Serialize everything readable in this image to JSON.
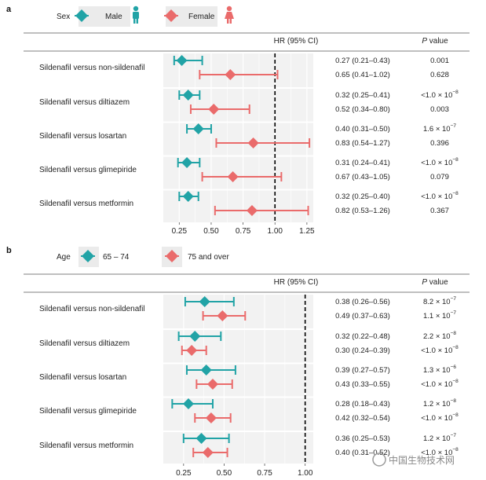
{
  "colors": {
    "male": "#21a3a6",
    "female": "#ea6b6b",
    "band": "#f2f2f2",
    "grid": "#ffffff"
  },
  "chart_data": [
    {
      "panel": "a",
      "type": "forest",
      "legend": {
        "title": "Sex",
        "items": [
          {
            "name": "Male",
            "color": "#21a3a6",
            "shape": "diamond",
            "icon": "male-person-icon"
          },
          {
            "name": "Female",
            "color": "#ea6b6b",
            "shape": "diamond",
            "icon": "female-person-icon"
          }
        ]
      },
      "header": {
        "hr": "HR (95% CI)",
        "p_italic": "P",
        "p_rest": " value"
      },
      "xaxis": {
        "min": 0.125,
        "max": 1.3,
        "ticks": [
          0.25,
          0.5,
          0.75,
          1.0,
          1.25
        ],
        "tick_labels": [
          "0.25",
          "0.50",
          "0.75",
          "1.00",
          "1.25"
        ],
        "ref_line": 1.0
      },
      "rows": [
        {
          "label": "Sildenafil versus non-sildenafil",
          "estimates": [
            {
              "group": "Male",
              "hr": 0.27,
              "lo": 0.21,
              "hi": 0.43,
              "hr_text": "0.27 (0.21–0.43)",
              "p_text": "0.001"
            },
            {
              "group": "Female",
              "hr": 0.65,
              "lo": 0.41,
              "hi": 1.02,
              "hr_text": "0.65 (0.41–1.02)",
              "p_text": "0.628"
            }
          ]
        },
        {
          "label": "Sildenafil versus diltiazem",
          "estimates": [
            {
              "group": "Male",
              "hr": 0.32,
              "lo": 0.25,
              "hi": 0.41,
              "hr_text": "0.32 (0.25–0.41)",
              "p_text": "<1.0 × 10",
              "p_exp": "−8"
            },
            {
              "group": "Female",
              "hr": 0.52,
              "lo": 0.34,
              "hi": 0.8,
              "hr_text": "0.52 (0.34–0.80)",
              "p_text": "0.003"
            }
          ]
        },
        {
          "label": "Sildenafil versus losartan",
          "estimates": [
            {
              "group": "Male",
              "hr": 0.4,
              "lo": 0.31,
              "hi": 0.5,
              "hr_text": "0.40 (0.31–0.50)",
              "p_text": "1.6 × 10",
              "p_exp": "−7"
            },
            {
              "group": "Female",
              "hr": 0.83,
              "lo": 0.54,
              "hi": 1.27,
              "hr_text": "0.83 (0.54–1.27)",
              "p_text": "0.396"
            }
          ]
        },
        {
          "label": "Sildenafil versus glimepiride",
          "estimates": [
            {
              "group": "Male",
              "hr": 0.31,
              "lo": 0.24,
              "hi": 0.41,
              "hr_text": "0.31 (0.24–0.41)",
              "p_text": "<1.0 × 10",
              "p_exp": "−8"
            },
            {
              "group": "Female",
              "hr": 0.67,
              "lo": 0.43,
              "hi": 1.05,
              "hr_text": "0.67 (0.43–1.05)",
              "p_text": "0.079"
            }
          ]
        },
        {
          "label": "Sildenafil versus metformin",
          "estimates": [
            {
              "group": "Male",
              "hr": 0.32,
              "lo": 0.25,
              "hi": 0.4,
              "hr_text": "0.32 (0.25–0.40)",
              "p_text": "<1.0 × 10",
              "p_exp": "−8"
            },
            {
              "group": "Female",
              "hr": 0.82,
              "lo": 0.53,
              "hi": 1.26,
              "hr_text": "0.82 (0.53–1.26)",
              "p_text": "0.367"
            }
          ]
        }
      ]
    },
    {
      "panel": "b",
      "type": "forest",
      "legend": {
        "title": "Age",
        "items": [
          {
            "name": "65 – 74",
            "color": "#21a3a6",
            "shape": "diamond"
          },
          {
            "name": "75 and over",
            "color": "#ea6b6b",
            "shape": "diamond"
          }
        ]
      },
      "header": {
        "hr": "HR (95% CI)",
        "p_italic": "P",
        "p_rest": " value"
      },
      "xaxis": {
        "min": 0.125,
        "max": 1.05,
        "ticks": [
          0.25,
          0.5,
          0.75,
          1.0
        ],
        "tick_labels": [
          "0.25",
          "0.50",
          "0.75",
          "1.00"
        ],
        "ref_line": 1.0
      },
      "rows": [
        {
          "label": "Sildenafil versus non-sildenafil",
          "estimates": [
            {
              "group": "65 – 74",
              "hr": 0.38,
              "lo": 0.26,
              "hi": 0.56,
              "hr_text": "0.38 (0.26–0.56)",
              "p_text": "8.2 × 10",
              "p_exp": "−7"
            },
            {
              "group": "75 and over",
              "hr": 0.49,
              "lo": 0.37,
              "hi": 0.63,
              "hr_text": "0.49 (0.37–0.63)",
              "p_text": "1.1 × 10",
              "p_exp": "−7"
            }
          ]
        },
        {
          "label": "Sildenafil versus diltiazem",
          "estimates": [
            {
              "group": "65 – 74",
              "hr": 0.32,
              "lo": 0.22,
              "hi": 0.48,
              "hr_text": "0.32 (0.22–0.48)",
              "p_text": "2.2 × 10",
              "p_exp": "−8"
            },
            {
              "group": "75 and over",
              "hr": 0.3,
              "lo": 0.24,
              "hi": 0.39,
              "hr_text": "0.30 (0.24–0.39)",
              "p_text": "<1.0 × 10",
              "p_exp": "−8"
            }
          ]
        },
        {
          "label": "Sildenafil versus losartan",
          "estimates": [
            {
              "group": "65 – 74",
              "hr": 0.39,
              "lo": 0.27,
              "hi": 0.57,
              "hr_text": "0.39 (0.27–0.57)",
              "p_text": "1.3 × 10",
              "p_exp": "−6"
            },
            {
              "group": "75 and over",
              "hr": 0.43,
              "lo": 0.33,
              "hi": 0.55,
              "hr_text": "0.43 (0.33–0.55)",
              "p_text": "<1.0 × 10",
              "p_exp": "−8"
            }
          ]
        },
        {
          "label": "Sildenafil versus glimepiride",
          "estimates": [
            {
              "group": "65 – 74",
              "hr": 0.28,
              "lo": 0.18,
              "hi": 0.43,
              "hr_text": "0.28 (0.18–0.43)",
              "p_text": "1.2 × 10",
              "p_exp": "−8"
            },
            {
              "group": "75 and over",
              "hr": 0.42,
              "lo": 0.32,
              "hi": 0.54,
              "hr_text": "0.42 (0.32–0.54)",
              "p_text": "<1.0 × 10",
              "p_exp": "−8"
            }
          ]
        },
        {
          "label": "Sildenafil versus metformin",
          "estimates": [
            {
              "group": "65 – 74",
              "hr": 0.36,
              "lo": 0.25,
              "hi": 0.53,
              "hr_text": "0.36 (0.25–0.53)",
              "p_text": "1.2 × 10",
              "p_exp": "−7"
            },
            {
              "group": "75 and over",
              "hr": 0.4,
              "lo": 0.31,
              "hi": 0.52,
              "hr_text": "0.40 (0.31–0.52)",
              "p_text": "<1.0 × 10",
              "p_exp": "−8"
            }
          ]
        }
      ]
    }
  ],
  "watermark": "中国生物技术网"
}
